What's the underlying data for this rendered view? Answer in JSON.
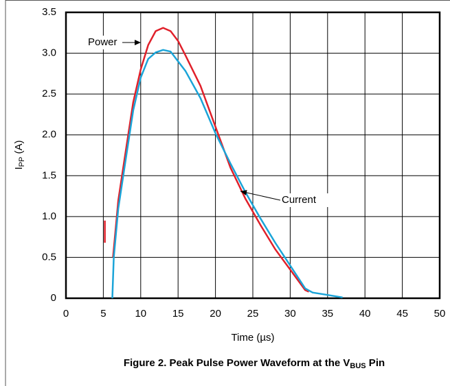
{
  "chart_data": {
    "type": "line",
    "caption": {
      "main": "Figure 2. Peak Pulse Power Waveform at the V",
      "sub": "BUS",
      "end": " Pin"
    },
    "x_label": "Time (µs)",
    "y_label": {
      "main": "I",
      "sub": "PP",
      "end": " (A)"
    },
    "xlim": [
      0,
      50
    ],
    "xticks": [
      0,
      5,
      10,
      15,
      20,
      25,
      30,
      35,
      40,
      45,
      50
    ],
    "ylim": [
      0,
      3.5
    ],
    "yticks": [
      0,
      0.5,
      {
        "value": 1,
        "label": "1.0"
      },
      1.5,
      {
        "value": 2,
        "label": "2.0"
      },
      2.5,
      {
        "value": 3,
        "label": "3.0"
      },
      3.5
    ],
    "grid": true,
    "annotations": [
      "Power",
      "Current"
    ],
    "series": [
      {
        "name": "Power",
        "color": "#e0202a",
        "x": [
          5.2,
          5.2,
          5.7,
          6.3,
          7,
          8,
          9,
          10,
          11,
          12,
          13,
          14,
          15,
          16,
          18,
          20,
          22,
          24,
          26,
          28,
          30,
          32,
          32.5
        ],
        "values": [
          0.68,
          0.95,
          null,
          0.5,
          1.2,
          1.8,
          2.4,
          2.8,
          3.1,
          3.27,
          3.31,
          3.27,
          3.15,
          2.97,
          2.6,
          2.1,
          1.6,
          1.22,
          0.9,
          0.6,
          0.35,
          0.1,
          0.08
        ]
      },
      {
        "name": "Current",
        "color": "#1aa4d8",
        "x": [
          6.2,
          6.4,
          7,
          8,
          9,
          10,
          11,
          12,
          13,
          14,
          15,
          16,
          18,
          20,
          22,
          24,
          26,
          28,
          30,
          32,
          33,
          35,
          37
        ],
        "values": [
          0,
          0.5,
          1.1,
          1.7,
          2.3,
          2.7,
          2.93,
          3.01,
          3.04,
          3.02,
          2.9,
          2.78,
          2.45,
          2.02,
          1.65,
          1.3,
          0.98,
          0.68,
          0.4,
          0.12,
          0.07,
          0.04,
          0.01
        ]
      }
    ]
  }
}
